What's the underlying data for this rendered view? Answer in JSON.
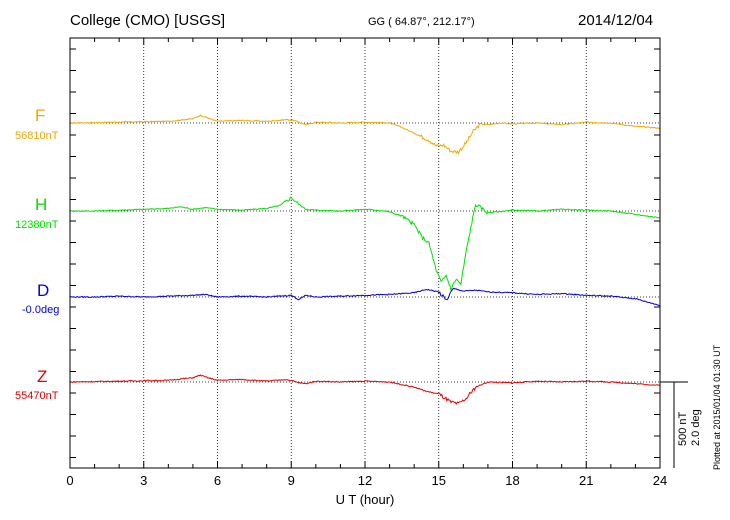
{
  "header": {
    "title": "College (CMO)  [USGS]",
    "coords": "GG ( 64.87°, 212.17°)",
    "date": "2014/12/04"
  },
  "side": {
    "plotted": "Plotted at 2015/01/04 01:30 UT",
    "scale_nt": "500 nT",
    "scale_deg": "2.0 deg"
  },
  "chart_data": {
    "type": "line",
    "title": "College (CMO)  [USGS]",
    "xlabel": "U T (hour)",
    "ylabel": "",
    "xlim": [
      0,
      24
    ],
    "x_ticks": [
      0,
      3,
      6,
      9,
      12,
      15,
      18,
      21,
      24
    ],
    "grid": true,
    "series": [
      {
        "name": "F",
        "baseline_label": "56810nT",
        "color": "#f0a800",
        "x": [
          0,
          2,
          4,
          5,
          5.3,
          5.6,
          6,
          7,
          8,
          8.8,
          9.1,
          9.3,
          9.6,
          10,
          11,
          12,
          13,
          13.5,
          14,
          14.3,
          14.6,
          14.9,
          15.2,
          15.5,
          15.8,
          16.1,
          16.4,
          16.7,
          17,
          17.5,
          18,
          19,
          20,
          21,
          22,
          23,
          24
        ],
        "values": [
          0,
          5,
          10,
          25,
          45,
          30,
          10,
          15,
          10,
          20,
          15,
          5,
          -10,
          5,
          0,
          5,
          0,
          -25,
          -60,
          -80,
          -100,
          -135,
          -130,
          -165,
          -170,
          -120,
          -50,
          -5,
          -10,
          0,
          -5,
          0,
          -10,
          5,
          0,
          -20,
          -30
        ]
      },
      {
        "name": "H",
        "baseline_label": "12380nT",
        "color": "#00e000",
        "x": [
          0,
          1,
          2,
          3,
          4,
          4.5,
          5,
          5.5,
          6,
          7,
          8,
          8.6,
          9,
          9.3,
          9.6,
          10,
          11,
          12,
          12.5,
          13,
          13.5,
          14,
          14.3,
          14.6,
          14.9,
          15.1,
          15.3,
          15.5,
          15.7,
          15.9,
          16.1,
          16.3,
          16.5,
          17,
          18,
          19,
          20,
          21,
          22,
          23,
          24
        ],
        "values": [
          0,
          0,
          5,
          10,
          15,
          25,
          10,
          20,
          10,
          5,
          15,
          35,
          80,
          40,
          10,
          5,
          0,
          10,
          5,
          -5,
          -30,
          -80,
          -150,
          -190,
          -350,
          -420,
          -380,
          -460,
          -400,
          -430,
          -250,
          -100,
          40,
          -10,
          5,
          0,
          10,
          5,
          0,
          -20,
          -40
        ]
      },
      {
        "name": "D",
        "baseline_label": "-0.0deg",
        "color": "#0000e0",
        "x": [
          0,
          1,
          2,
          3,
          4,
          5,
          5.5,
          6,
          7,
          8,
          9,
          9.3,
          9.6,
          10,
          11,
          12,
          13,
          14,
          14.5,
          15,
          15.3,
          15.6,
          16,
          16.5,
          17,
          18,
          19,
          20,
          21,
          22,
          23,
          23.5,
          24
        ],
        "values": [
          0,
          0,
          5,
          0,
          5,
          10,
          15,
          0,
          5,
          0,
          10,
          -15,
          10,
          0,
          5,
          10,
          15,
          25,
          45,
          30,
          -20,
          50,
          35,
          40,
          30,
          25,
          15,
          20,
          10,
          5,
          -10,
          -30,
          -50
        ]
      },
      {
        "name": "Z",
        "baseline_label": "55470nT",
        "color": "#e00000",
        "x": [
          0,
          2,
          4,
          5,
          5.3,
          5.6,
          6,
          7,
          8,
          8.8,
          9.1,
          9.3,
          9.6,
          10,
          11,
          12,
          13,
          13.5,
          14,
          14.5,
          15,
          15.5,
          15.8,
          16.1,
          16.5,
          17,
          18,
          19,
          20,
          21,
          22,
          23,
          24
        ],
        "values": [
          0,
          5,
          10,
          25,
          40,
          25,
          10,
          15,
          5,
          15,
          5,
          -5,
          -10,
          5,
          0,
          5,
          0,
          -15,
          -30,
          -55,
          -70,
          -120,
          -130,
          -100,
          -30,
          0,
          -5,
          5,
          0,
          5,
          0,
          -10,
          -20
        ]
      }
    ]
  }
}
